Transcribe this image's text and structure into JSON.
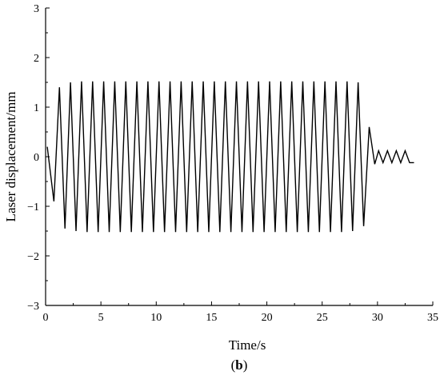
{
  "chart_data": {
    "type": "line",
    "title": "",
    "xlabel": "Time/s",
    "ylabel": "Laser displacement/mm",
    "xlim": [
      0,
      35
    ],
    "ylim": [
      -3,
      3
    ],
    "xticks": [
      "0",
      "5",
      "10",
      "15",
      "20",
      "25",
      "30",
      "35"
    ],
    "yticks": [
      "3",
      "2",
      "1",
      "0",
      "−1",
      "−2",
      "−3"
    ],
    "grid": false,
    "legend": "none",
    "line_color": "#000000",
    "caption": {
      "open": "(",
      "label": "b",
      "close": ")"
    },
    "series": [
      {
        "x": [
          0.15,
          0.75,
          1.25,
          1.75,
          2.25,
          2.75,
          3.25,
          3.75,
          4.25,
          4.75,
          5.25,
          5.75,
          6.25,
          6.75,
          7.25,
          7.75,
          8.25,
          8.75,
          9.25,
          9.75,
          10.25,
          10.75,
          11.25,
          11.75,
          12.25,
          12.75,
          13.25,
          13.75,
          14.25,
          14.75,
          15.25,
          15.75,
          16.25,
          16.75,
          17.25,
          17.75,
          18.25,
          18.75,
          19.25,
          19.75,
          20.25,
          20.75,
          21.25,
          21.75,
          22.25,
          22.75,
          23.25,
          23.75,
          24.25,
          24.75,
          25.25,
          25.75,
          26.25,
          26.75,
          27.25,
          27.75,
          28.25,
          28.75,
          29.25,
          29.75,
          30.1,
          30.5,
          30.9,
          31.3,
          31.7,
          32.1,
          32.5,
          32.9,
          33.3
        ],
        "y": [
          0.2,
          -0.9,
          1.4,
          -1.45,
          1.5,
          -1.5,
          1.52,
          -1.52,
          1.52,
          -1.52,
          1.52,
          -1.52,
          1.52,
          -1.52,
          1.52,
          -1.52,
          1.52,
          -1.52,
          1.52,
          -1.52,
          1.52,
          -1.52,
          1.52,
          -1.52,
          1.52,
          -1.52,
          1.52,
          -1.52,
          1.52,
          -1.52,
          1.52,
          -1.52,
          1.52,
          -1.52,
          1.52,
          -1.52,
          1.52,
          -1.52,
          1.52,
          -1.52,
          1.52,
          -1.52,
          1.52,
          -1.52,
          1.52,
          -1.52,
          1.52,
          -1.52,
          1.52,
          -1.52,
          1.52,
          -1.52,
          1.52,
          -1.52,
          1.52,
          -1.5,
          1.5,
          -1.4,
          0.6,
          -0.15,
          0.12,
          -0.12,
          0.12,
          -0.12,
          0.12,
          -0.12,
          0.12,
          -0.12,
          -0.12
        ]
      }
    ]
  }
}
